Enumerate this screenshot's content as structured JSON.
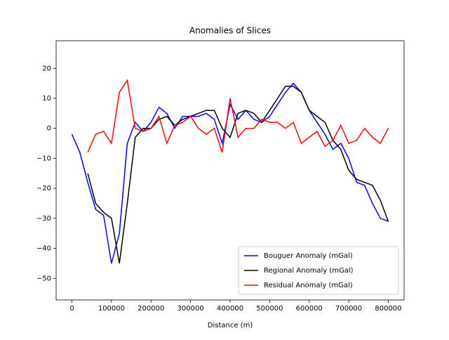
{
  "chart_data": {
    "type": "line",
    "title": "Anomalies of Slices",
    "x_label": "Distance (m)",
    "x": [
      0,
      20000,
      40000,
      60000,
      80000,
      100000,
      120000,
      140000,
      160000,
      180000,
      200000,
      220000,
      240000,
      260000,
      280000,
      300000,
      320000,
      340000,
      360000,
      380000,
      400000,
      420000,
      440000,
      460000,
      480000,
      500000,
      520000,
      540000,
      560000,
      580000,
      600000,
      620000,
      640000,
      660000,
      680000,
      700000,
      720000,
      740000,
      760000,
      780000,
      800000
    ],
    "series": [
      {
        "name": "Bouguer Anomaly (mGal)",
        "color": "#0000ff",
        "values": [
          -2,
          -8,
          -18,
          -27,
          -29,
          -45,
          -35,
          -5,
          2,
          -1,
          2,
          7,
          5,
          0,
          4,
          4,
          4,
          5,
          3,
          -5,
          8,
          3,
          6,
          3,
          2,
          4,
          8,
          12,
          15,
          12,
          6,
          2,
          -2,
          -7,
          -5,
          -10,
          -18,
          -19,
          -25,
          -30,
          -31
        ]
      },
      {
        "name": "Regional Anomaly (mGal)",
        "color": "#000000",
        "values": [
          null,
          null,
          -15,
          -25,
          -28,
          -30,
          -45,
          -25,
          -3,
          0,
          0,
          3,
          4,
          1,
          3,
          4,
          5,
          6,
          6,
          0,
          -3,
          5,
          6,
          5,
          2,
          6,
          10,
          14,
          14,
          12,
          6,
          4,
          2,
          -4,
          -7,
          -14,
          -17,
          -18,
          -19,
          -24,
          -31
        ]
      },
      {
        "name": "Residual Anomaly (mGal)",
        "color": "#ff0000",
        "values": [
          null,
          null,
          -8,
          -2,
          -1,
          -5,
          12,
          16,
          0,
          -1,
          0,
          4,
          -5,
          1,
          2,
          4,
          0,
          -2,
          0,
          -8,
          10,
          -3,
          0,
          0,
          3,
          2,
          2,
          0,
          2,
          -5,
          -3,
          -1,
          -6,
          -4,
          1,
          -5,
          -4,
          0,
          -3,
          -5,
          0
        ]
      }
    ],
    "xlim": [
      -40000,
      840000
    ],
    "ylim": [
      -57.2,
      29.2
    ],
    "xticks": [
      0,
      100000,
      200000,
      300000,
      400000,
      500000,
      600000,
      700000,
      800000
    ],
    "yticks": [
      {
        "value": -50,
        "label": "−50"
      },
      {
        "value": -40,
        "label": "−40"
      },
      {
        "value": -30,
        "label": "−30"
      },
      {
        "value": -20,
        "label": "−20"
      },
      {
        "value": -10,
        "label": "−10"
      },
      0,
      10,
      20
    ],
    "legend": "lower right"
  }
}
